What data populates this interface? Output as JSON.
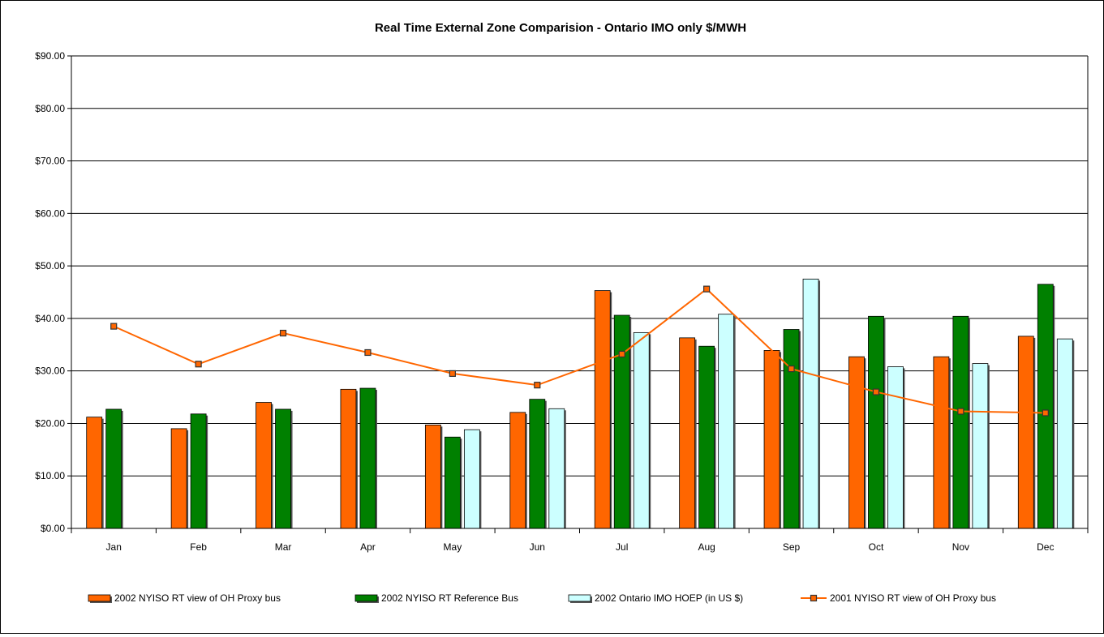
{
  "chart_data": {
    "type": "bar",
    "title": "Real Time External Zone Comparision - Ontario IMO only $/MWH",
    "categories": [
      "Jan",
      "Feb",
      "Mar",
      "Apr",
      "May",
      "Jun",
      "Jul",
      "Aug",
      "Sep",
      "Oct",
      "Nov",
      "Dec"
    ],
    "y_ticks": [
      "$0.00",
      "$10.00",
      "$20.00",
      "$30.00",
      "$40.00",
      "$50.00",
      "$60.00",
      "$70.00",
      "$80.00",
      "$90.00"
    ],
    "ylim": [
      0,
      90
    ],
    "grid": true,
    "legend_position": "bottom",
    "series": [
      {
        "name": "2002 NYISO RT view of OH Proxy bus",
        "kind": "bar",
        "color": "#FF6600",
        "values": [
          21.2,
          19.0,
          24.0,
          26.5,
          19.7,
          22.1,
          45.3,
          36.3,
          33.9,
          32.7,
          32.7,
          36.6
        ]
      },
      {
        "name": "2002 NYISO RT Reference Bus",
        "kind": "bar",
        "color": "#008000",
        "values": [
          22.7,
          21.8,
          22.7,
          26.7,
          17.4,
          24.6,
          40.6,
          34.7,
          37.9,
          40.4,
          40.4,
          46.5
        ]
      },
      {
        "name": "2002 Ontario IMO HOEP (in US $)",
        "kind": "bar",
        "color": "#CCFFFF",
        "values": [
          null,
          null,
          null,
          null,
          18.8,
          22.8,
          37.3,
          40.8,
          47.5,
          30.8,
          31.4,
          36.1
        ]
      },
      {
        "name": "2001 NYISO RT view of OH Proxy bus",
        "kind": "line",
        "color": "#FF6600",
        "values": [
          38.5,
          31.3,
          37.2,
          33.5,
          29.5,
          27.3,
          33.2,
          45.6,
          30.4,
          26.0,
          22.3,
          22.0
        ]
      }
    ]
  }
}
